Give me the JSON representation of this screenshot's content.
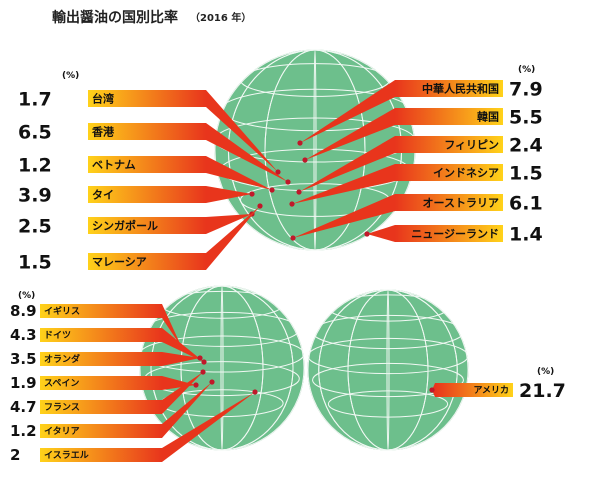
{
  "title": "輸出醤油の国別比率",
  "subtitle": "（2016 年）",
  "unit_label": "(%)",
  "colors": {
    "globe_ocean": "#6dbf8c",
    "globe_grid": "#ffffff",
    "bar_start": "#ffd21a",
    "bar_end": "#e8351c",
    "dot": "#c0182a"
  },
  "chart_data": [
    {
      "type": "bar",
      "region": "Asia",
      "categories": [
        "台湾",
        "香港",
        "ベトナム",
        "タイ",
        "シンガポール",
        "マレーシア",
        "中華人民共和国",
        "韓国",
        "フィリピン",
        "インドネシア",
        "オーストラリア",
        "ニュージーランド"
      ],
      "values": [
        1.7,
        6.5,
        1.2,
        3.9,
        2.5,
        1.5,
        7.9,
        5.5,
        2.4,
        1.5,
        6.1,
        1.4
      ]
    },
    {
      "type": "bar",
      "region": "Europe",
      "categories": [
        "イギリス",
        "ドイツ",
        "オランダ",
        "スペイン",
        "フランス",
        "イタリア",
        "イスラエル"
      ],
      "values": [
        8.9,
        4.3,
        3.5,
        1.9,
        4.7,
        1.2,
        2.0
      ]
    },
    {
      "type": "bar",
      "region": "America",
      "categories": [
        "アメリカ"
      ],
      "values": [
        21.7
      ]
    }
  ]
}
